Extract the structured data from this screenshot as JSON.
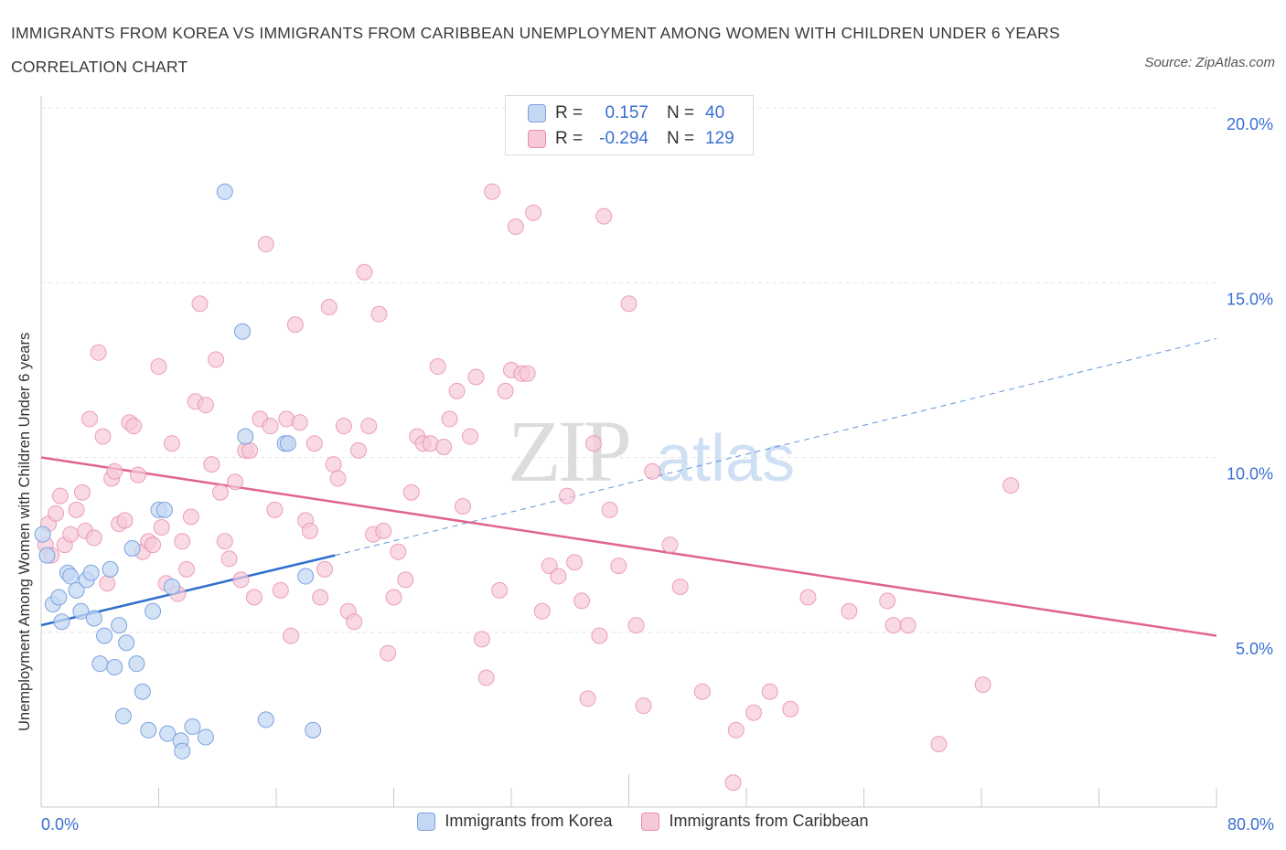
{
  "title": "IMMIGRANTS FROM KOREA VS IMMIGRANTS FROM CARIBBEAN UNEMPLOYMENT AMONG WOMEN WITH CHILDREN UNDER 6 YEARS CORRELATION CHART",
  "source": "Source: ZipAtlas.com",
  "watermark": {
    "zip": "ZIP",
    "atlas": "atlas"
  },
  "stats": {
    "korea": {
      "r_label": "R =",
      "r": "0.157",
      "n_label": "N =",
      "n": "40"
    },
    "caribbean": {
      "r_label": "R =",
      "r": "-0.294",
      "n_label": "N =",
      "n": "129"
    }
  },
  "legend": {
    "korea": "Immigrants from Korea",
    "caribbean": "Immigrants from Caribbean"
  },
  "colors": {
    "korea": "#7ba3e0",
    "korea_fill": "#c5d8f3",
    "caribbean": "#e98bab",
    "caribbean_fill": "#f7c9d8",
    "korea_line": "#2f6fcf",
    "caribbean_line": "#e0648f",
    "axis_text": "#3b6fd1"
  },
  "chart_data": {
    "type": "scatter",
    "ylabel": "Unemployment Among Women with Children Under 6 years",
    "xlim": [
      0,
      80
    ],
    "ylim": [
      0,
      20
    ],
    "x_tick_labels": [
      "0.0%",
      "80.0%"
    ],
    "y_ticks": [
      5,
      10,
      15,
      20
    ],
    "y_tick_labels": [
      "5.0%",
      "10.0%",
      "15.0%",
      "20.0%"
    ],
    "grid": true,
    "series": [
      {
        "name": "Immigrants from Korea",
        "trend": {
          "x0": 0,
          "y0": 5.2,
          "x1": 20,
          "y1": 7.2,
          "extend_to_x": 80,
          "extend_to_y": 13.4
        },
        "points": [
          [
            0.1,
            7.8
          ],
          [
            0.4,
            7.2
          ],
          [
            0.8,
            5.8
          ],
          [
            1.2,
            6.0
          ],
          [
            1.4,
            5.3
          ],
          [
            1.8,
            6.7
          ],
          [
            2.0,
            6.6
          ],
          [
            2.4,
            6.2
          ],
          [
            2.7,
            5.6
          ],
          [
            3.1,
            6.5
          ],
          [
            3.4,
            6.7
          ],
          [
            3.6,
            5.4
          ],
          [
            4.0,
            4.1
          ],
          [
            4.3,
            4.9
          ],
          [
            4.7,
            6.8
          ],
          [
            5.0,
            4.0
          ],
          [
            5.3,
            5.2
          ],
          [
            5.6,
            2.6
          ],
          [
            5.8,
            4.7
          ],
          [
            6.2,
            7.4
          ],
          [
            6.5,
            4.1
          ],
          [
            6.9,
            3.3
          ],
          [
            7.3,
            2.2
          ],
          [
            7.6,
            5.6
          ],
          [
            8.0,
            8.5
          ],
          [
            8.4,
            8.5
          ],
          [
            8.6,
            2.1
          ],
          [
            8.9,
            6.3
          ],
          [
            9.5,
            1.9
          ],
          [
            9.6,
            1.6
          ],
          [
            10.3,
            2.3
          ],
          [
            11.2,
            2.0
          ],
          [
            12.5,
            17.6
          ],
          [
            13.7,
            13.6
          ],
          [
            13.9,
            10.6
          ],
          [
            15.3,
            2.5
          ],
          [
            16.6,
            10.4
          ],
          [
            16.8,
            10.4
          ],
          [
            18.0,
            6.6
          ],
          [
            18.5,
            2.2
          ]
        ]
      },
      {
        "name": "Immigrants from Caribbean",
        "trend": {
          "x0": 0,
          "y0": 10.0,
          "x1": 80,
          "y1": 4.9
        },
        "points": [
          [
            0.3,
            7.5
          ],
          [
            0.5,
            8.1
          ],
          [
            0.7,
            7.2
          ],
          [
            1.0,
            8.4
          ],
          [
            1.3,
            8.9
          ],
          [
            1.6,
            7.5
          ],
          [
            2.0,
            7.8
          ],
          [
            2.4,
            8.5
          ],
          [
            2.8,
            9.0
          ],
          [
            3.0,
            7.9
          ],
          [
            3.3,
            11.1
          ],
          [
            3.6,
            7.7
          ],
          [
            3.9,
            13.0
          ],
          [
            4.2,
            10.6
          ],
          [
            4.5,
            6.4
          ],
          [
            4.8,
            9.4
          ],
          [
            5.0,
            9.6
          ],
          [
            5.3,
            8.1
          ],
          [
            5.7,
            8.2
          ],
          [
            6.0,
            11.0
          ],
          [
            6.3,
            10.9
          ],
          [
            6.6,
            9.5
          ],
          [
            6.9,
            7.3
          ],
          [
            7.3,
            7.6
          ],
          [
            7.6,
            7.5
          ],
          [
            8.0,
            12.6
          ],
          [
            8.2,
            8.0
          ],
          [
            8.5,
            6.4
          ],
          [
            8.9,
            10.4
          ],
          [
            9.3,
            6.1
          ],
          [
            9.6,
            7.6
          ],
          [
            9.9,
            6.8
          ],
          [
            10.2,
            8.3
          ],
          [
            10.5,
            11.6
          ],
          [
            10.8,
            14.4
          ],
          [
            11.2,
            11.5
          ],
          [
            11.6,
            9.8
          ],
          [
            11.9,
            12.8
          ],
          [
            12.2,
            9.0
          ],
          [
            12.5,
            7.6
          ],
          [
            12.8,
            7.1
          ],
          [
            13.2,
            9.3
          ],
          [
            13.6,
            6.5
          ],
          [
            13.9,
            10.2
          ],
          [
            14.2,
            10.2
          ],
          [
            14.5,
            6.0
          ],
          [
            14.9,
            11.1
          ],
          [
            15.3,
            16.1
          ],
          [
            15.6,
            10.9
          ],
          [
            15.9,
            8.5
          ],
          [
            16.3,
            6.2
          ],
          [
            16.7,
            11.1
          ],
          [
            17.0,
            4.9
          ],
          [
            17.3,
            13.8
          ],
          [
            17.6,
            11.0
          ],
          [
            18.0,
            8.2
          ],
          [
            18.3,
            7.9
          ],
          [
            18.6,
            10.4
          ],
          [
            19.0,
            6.0
          ],
          [
            19.3,
            6.8
          ],
          [
            19.6,
            14.3
          ],
          [
            19.9,
            9.8
          ],
          [
            20.2,
            9.4
          ],
          [
            20.6,
            10.9
          ],
          [
            20.9,
            5.6
          ],
          [
            21.3,
            5.3
          ],
          [
            21.6,
            10.2
          ],
          [
            22.0,
            15.3
          ],
          [
            22.3,
            10.9
          ],
          [
            22.6,
            7.8
          ],
          [
            23.0,
            14.1
          ],
          [
            23.3,
            7.9
          ],
          [
            23.6,
            4.4
          ],
          [
            24.0,
            6.0
          ],
          [
            24.3,
            7.3
          ],
          [
            24.8,
            6.5
          ],
          [
            25.2,
            9.0
          ],
          [
            25.6,
            10.6
          ],
          [
            26.0,
            10.4
          ],
          [
            26.5,
            10.4
          ],
          [
            27.0,
            12.6
          ],
          [
            27.4,
            10.3
          ],
          [
            27.8,
            11.1
          ],
          [
            28.3,
            11.9
          ],
          [
            28.7,
            8.6
          ],
          [
            29.2,
            10.6
          ],
          [
            29.6,
            12.3
          ],
          [
            30.0,
            4.8
          ],
          [
            30.3,
            3.7
          ],
          [
            30.7,
            17.6
          ],
          [
            31.2,
            6.2
          ],
          [
            31.6,
            11.9
          ],
          [
            32.0,
            12.5
          ],
          [
            32.3,
            16.6
          ],
          [
            32.7,
            12.4
          ],
          [
            33.1,
            12.4
          ],
          [
            33.5,
            17.0
          ],
          [
            34.1,
            5.6
          ],
          [
            34.6,
            6.9
          ],
          [
            35.2,
            6.6
          ],
          [
            35.8,
            8.9
          ],
          [
            36.3,
            7.0
          ],
          [
            36.8,
            5.9
          ],
          [
            37.2,
            3.1
          ],
          [
            37.6,
            10.4
          ],
          [
            38.0,
            4.9
          ],
          [
            38.3,
            16.9
          ],
          [
            38.7,
            8.5
          ],
          [
            39.3,
            6.9
          ],
          [
            40.0,
            14.4
          ],
          [
            40.5,
            5.2
          ],
          [
            41.0,
            2.9
          ],
          [
            41.6,
            9.6
          ],
          [
            42.8,
            7.5
          ],
          [
            43.5,
            6.3
          ],
          [
            45.0,
            3.3
          ],
          [
            47.1,
            0.7
          ],
          [
            47.3,
            2.2
          ],
          [
            48.5,
            2.7
          ],
          [
            49.6,
            3.3
          ],
          [
            51.0,
            2.8
          ],
          [
            52.2,
            6.0
          ],
          [
            55.0,
            5.6
          ],
          [
            57.6,
            5.9
          ],
          [
            58.0,
            5.2
          ],
          [
            59.0,
            5.2
          ],
          [
            61.1,
            1.8
          ],
          [
            64.1,
            3.5
          ],
          [
            66.0,
            9.2
          ]
        ]
      }
    ]
  }
}
